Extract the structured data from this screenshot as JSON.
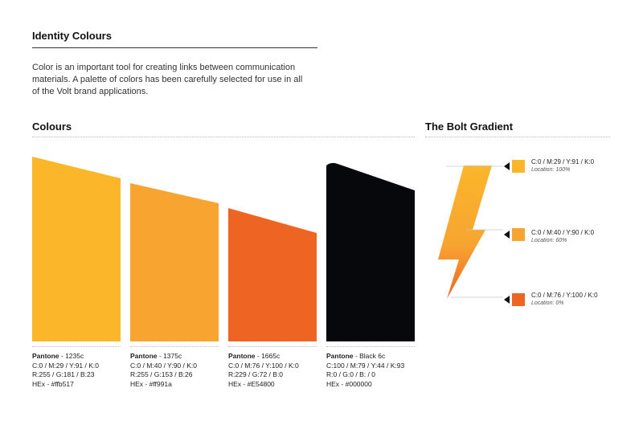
{
  "header": {
    "title": "Identity Colours",
    "intro": "Color is an important tool for creating links between communication materials. A palette of colors has been carefully selected for use in all of the Volt brand applications."
  },
  "colours": {
    "title": "Colours",
    "swatches": [
      {
        "pantone_label": "Pantone",
        "pantone_value": " - 1235c",
        "cmyk": "C:0 / M:29 / Y:91 / K:0",
        "rgb": "R:255 / G:181 / B:23",
        "hex": "HEx - #ffb517",
        "color": "#fbb62a"
      },
      {
        "pantone_label": "Pantone",
        "pantone_value": " - 1375c",
        "cmyk": "C:0 / M:40 / Y:90 / K:0",
        "rgb": "R:255 / G:153 / B:26",
        "hex": "HEx - #ff991a",
        "color": "#f7a431"
      },
      {
        "pantone_label": "Pantone",
        "pantone_value": " - 1665c",
        "cmyk": "C:0 / M:76 / Y:100 / K:0",
        "rgb": "R:229 / G:72 / B:0",
        "hex": "HEx - #E54800",
        "color": "#ee6423"
      },
      {
        "pantone_label": "Pantone",
        "pantone_value": " - Black 6c",
        "cmyk": "C:100 / M:79 / Y:44 / K:93",
        "rgb": "R:0 / G:0 / B: / 0",
        "hex": "HEx - #000000",
        "color": "#07080c"
      }
    ]
  },
  "gradient": {
    "title": "The Bolt Gradient",
    "stops": [
      {
        "cmyk": "C:0 / M:29 / Y:91 / K:0",
        "location": "Location: 100%",
        "color": "#fbb62a"
      },
      {
        "cmyk": "C:0 / M:40 / Y:90 / K:0",
        "location": "Location: 60%",
        "color": "#f7a431"
      },
      {
        "cmyk": "C:0 / M:76 / Y:100 / K:0",
        "location": "Location: 0%",
        "color": "#ee6423"
      }
    ]
  }
}
